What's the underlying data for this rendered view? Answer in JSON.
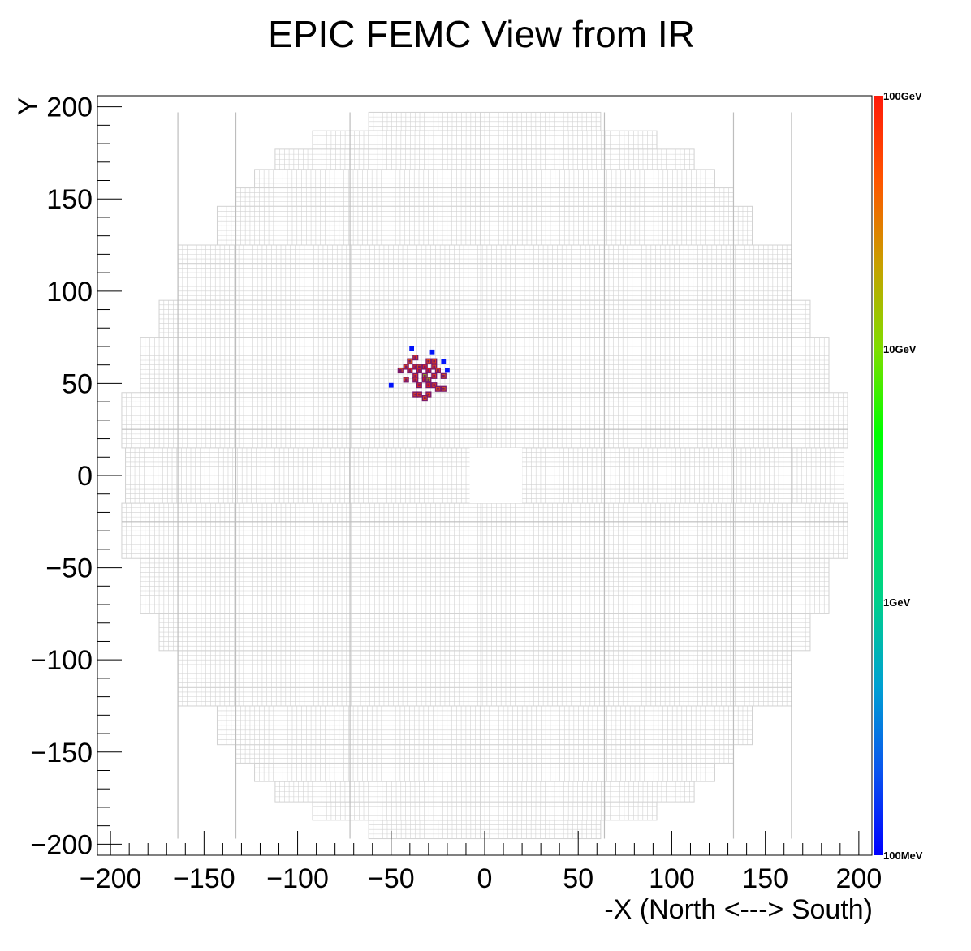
{
  "chart_data": {
    "type": "heatmap",
    "title": "EPIC FEMC View from IR",
    "xlabel": "-X (North <---> South)",
    "ylabel": "Y",
    "xlim": [
      -207,
      207
    ],
    "ylim": [
      -206,
      206
    ],
    "x_ticks": [
      -200,
      -150,
      -100,
      -50,
      0,
      50,
      100,
      150,
      200
    ],
    "y_ticks": [
      -200,
      -150,
      -100,
      -50,
      0,
      50,
      100,
      150,
      200
    ],
    "x_tick_labels": [
      "−200",
      "−150",
      "−100",
      "−50",
      "0",
      "50",
      "100",
      "150",
      "200"
    ],
    "y_tick_labels": [
      "−200",
      "−150",
      "−100",
      "−50",
      "0",
      "50",
      "100",
      "150",
      "200"
    ],
    "colorbar": {
      "scale": "log",
      "range_gev": [
        0.1,
        100
      ],
      "labels": [
        {
          "text": "100GeV",
          "value": 100
        },
        {
          "text": "10GeV",
          "value": 10
        },
        {
          "text": "1GeV",
          "value": 1
        },
        {
          "text": "100MeV",
          "value": 0.1
        }
      ],
      "colors": [
        "#0000ff",
        "#0a55ee",
        "#00a0d2",
        "#00cf8c",
        "#00e85a",
        "#00ff00",
        "#7fdd00",
        "#c8a000",
        "#ff5500",
        "#ff1a0a"
      ]
    },
    "detector": {
      "cell_size": 2.5,
      "outline_color": "#d2d2d2",
      "beam_hole": {
        "x": [
          -8,
          20
        ],
        "y": [
          -15,
          15
        ]
      },
      "envelope_rows": [
        {
          "y": [
            197,
            197
          ],
          "x": [
            -31,
            31
          ]
        },
        {
          "y": [
            187,
            197
          ],
          "x": [
            -62,
            62
          ]
        },
        {
          "y": [
            177,
            187
          ],
          "x": [
            -92,
            92
          ]
        },
        {
          "y": [
            166,
            177
          ],
          "x": [
            -112,
            112
          ]
        },
        {
          "y": [
            156,
            166
          ],
          "x": [
            -123,
            123
          ]
        },
        {
          "y": [
            146,
            156
          ],
          "x": [
            -133,
            133
          ]
        },
        {
          "y": [
            125,
            146
          ],
          "x": [
            -143,
            143
          ]
        },
        {
          "y": [
            115,
            125
          ],
          "x": [
            -164,
            164
          ]
        },
        {
          "y": [
            95,
            115
          ],
          "x": [
            -164,
            164
          ]
        },
        {
          "y": [
            75,
            95
          ],
          "x": [
            -174,
            174
          ]
        },
        {
          "y": [
            45,
            75
          ],
          "x": [
            -184,
            184
          ]
        },
        {
          "y": [
            15,
            45
          ],
          "x": [
            -194,
            194
          ]
        },
        {
          "y": [
            -15,
            15
          ],
          "x": [
            -192,
            192
          ]
        }
      ],
      "vertical_module_lines": [
        -164,
        -133,
        -72,
        -2,
        64,
        133,
        164
      ],
      "horizontal_module_lines": [
        25,
        -25
      ]
    },
    "hits": [
      {
        "x": -39,
        "y": 69,
        "e": 0.12
      },
      {
        "x": -28,
        "y": 67,
        "e": 0.12
      },
      {
        "x": -22,
        "y": 62,
        "e": 0.12
      },
      {
        "x": -20,
        "y": 57,
        "e": 0.12
      },
      {
        "x": -50,
        "y": 49,
        "e": 0.12
      },
      {
        "x": -37,
        "y": 64,
        "e": 60
      },
      {
        "x": -40,
        "y": 62,
        "e": 40
      },
      {
        "x": -30,
        "y": 62,
        "e": 50
      },
      {
        "x": -27,
        "y": 62,
        "e": 60
      },
      {
        "x": -42,
        "y": 59,
        "e": 45
      },
      {
        "x": -37,
        "y": 59,
        "e": 70
      },
      {
        "x": -35,
        "y": 59,
        "e": 40
      },
      {
        "x": -32,
        "y": 59,
        "e": 80
      },
      {
        "x": -27,
        "y": 59,
        "e": 55
      },
      {
        "x": -45,
        "y": 57,
        "e": 40
      },
      {
        "x": -40,
        "y": 57,
        "e": 75
      },
      {
        "x": -35,
        "y": 57,
        "e": 85
      },
      {
        "x": -30,
        "y": 57,
        "e": 90
      },
      {
        "x": -25,
        "y": 57,
        "e": 50
      },
      {
        "x": -37,
        "y": 54,
        "e": 65
      },
      {
        "x": -32,
        "y": 54,
        "e": 12
      },
      {
        "x": -27,
        "y": 54,
        "e": 60
      },
      {
        "x": -22,
        "y": 54,
        "e": 40
      },
      {
        "x": -42,
        "y": 52,
        "e": 50
      },
      {
        "x": -37,
        "y": 52,
        "e": 70
      },
      {
        "x": -32,
        "y": 52,
        "e": 95
      },
      {
        "x": -30,
        "y": 52,
        "e": 15
      },
      {
        "x": -35,
        "y": 49,
        "e": 80
      },
      {
        "x": -30,
        "y": 49,
        "e": 90
      },
      {
        "x": -27,
        "y": 49,
        "e": 60
      },
      {
        "x": -25,
        "y": 47,
        "e": 45
      },
      {
        "x": -22,
        "y": 47,
        "e": 40
      },
      {
        "x": -37,
        "y": 44,
        "e": 50
      },
      {
        "x": -35,
        "y": 44,
        "e": 60
      },
      {
        "x": -30,
        "y": 44,
        "e": 55
      },
      {
        "x": -32,
        "y": 42,
        "e": 45
      }
    ]
  }
}
